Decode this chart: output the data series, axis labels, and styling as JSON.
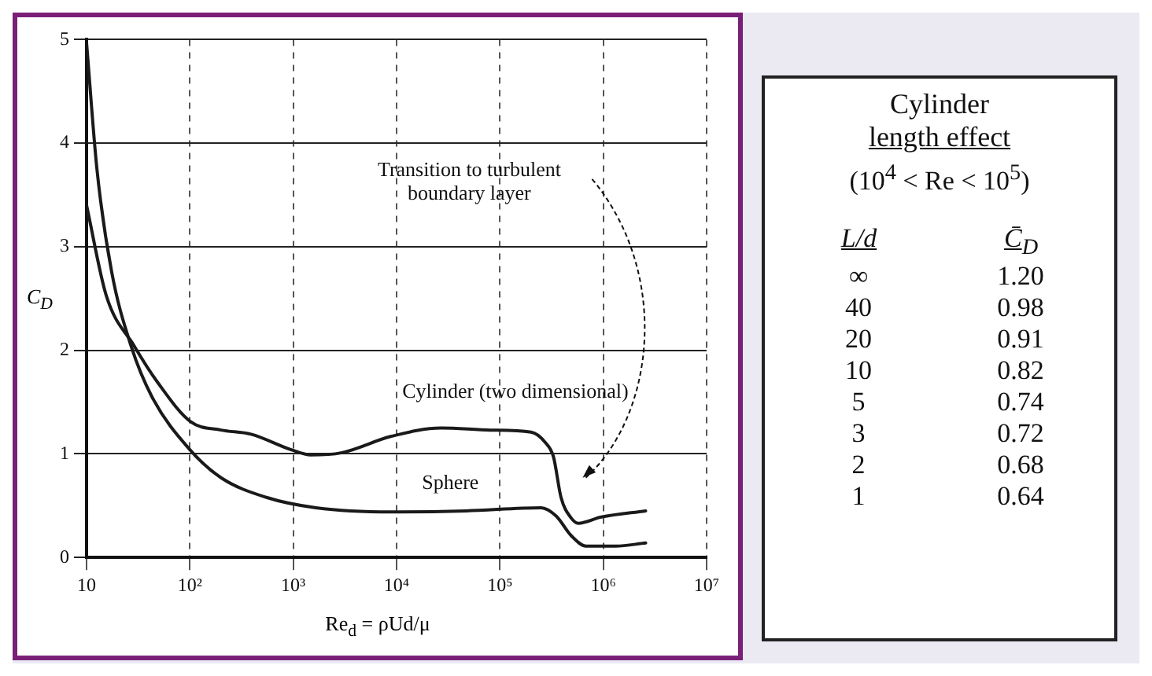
{
  "chart_data": [
    {
      "type": "line",
      "xlabel": "Re$_{d}$ = ρUd/μ",
      "ylabel": "C$_{D}$",
      "log": "x",
      "grid": true,
      "legend": false,
      "marker": "none",
      "line_style": "solid",
      "xlim": [
        10,
        10000000
      ],
      "xticks": [
        10,
        {
          "value": 100,
          "label": "10²"
        },
        {
          "value": 1000,
          "label": "10³"
        },
        {
          "value": 10000,
          "label": "10⁴"
        },
        {
          "value": 100000,
          "label": "10⁵"
        },
        {
          "value": 1000000,
          "label": "10⁶"
        },
        {
          "value": 10000000,
          "label": "10⁷"
        }
      ],
      "ylim": [
        0,
        5
      ],
      "yticks": [
        0,
        1,
        2,
        3,
        4,
        5
      ],
      "series": [
        {
          "name": "Cylinder (two dimensional)",
          "color": "#1a1a1a",
          "x": [
            10,
            15.5,
            29,
            48,
            102,
            200,
            390,
            955,
            1480,
            2900,
            8900,
            27000,
            81000,
            200000,
            275000,
            330000,
            390000,
            490000,
            575000,
            955000,
            2570000
          ],
          "values": [
            3.4,
            2.53,
            2.04,
            1.7,
            1.31,
            1.23,
            1.19,
            1.04,
            0.99,
            1.01,
            1.17,
            1.25,
            1.23,
            1.21,
            1.11,
            0.97,
            0.58,
            0.38,
            0.33,
            0.39,
            0.45
          ]
        },
        {
          "name": "Sphere",
          "color": "#1a1a1a",
          "x": [
            10,
            12.6,
            17.4,
            27,
            43,
            100,
            200,
            550,
            1660,
            8900,
            47000,
            250000,
            350000,
            490000,
            680000,
            1320000,
            2570000
          ],
          "values": [
            4.97,
            3.75,
            2.77,
            2.04,
            1.55,
            1.04,
            0.77,
            0.58,
            0.48,
            0.44,
            0.45,
            0.48,
            0.4,
            0.21,
            0.11,
            0.11,
            0.14
          ]
        }
      ],
      "annotations": [
        "Transition to turbulent boundary layer"
      ]
    },
    {
      "type": "other",
      "title": "Cylinder",
      "subtitle": "length effect",
      "annotations": [
        "(10$^{4}$ < Re < 10$^{5}$)"
      ],
      "xlabel": "L/d",
      "ylabel": "C̄$_{D}$",
      "categories": [
        "∞",
        "40",
        "20",
        "10",
        "5",
        "3",
        "2",
        "1"
      ],
      "value_labels": [
        "1.20",
        "0.98",
        "0.91",
        "0.82",
        "0.74",
        "0.72",
        "0.68",
        "0.64"
      ]
    }
  ]
}
